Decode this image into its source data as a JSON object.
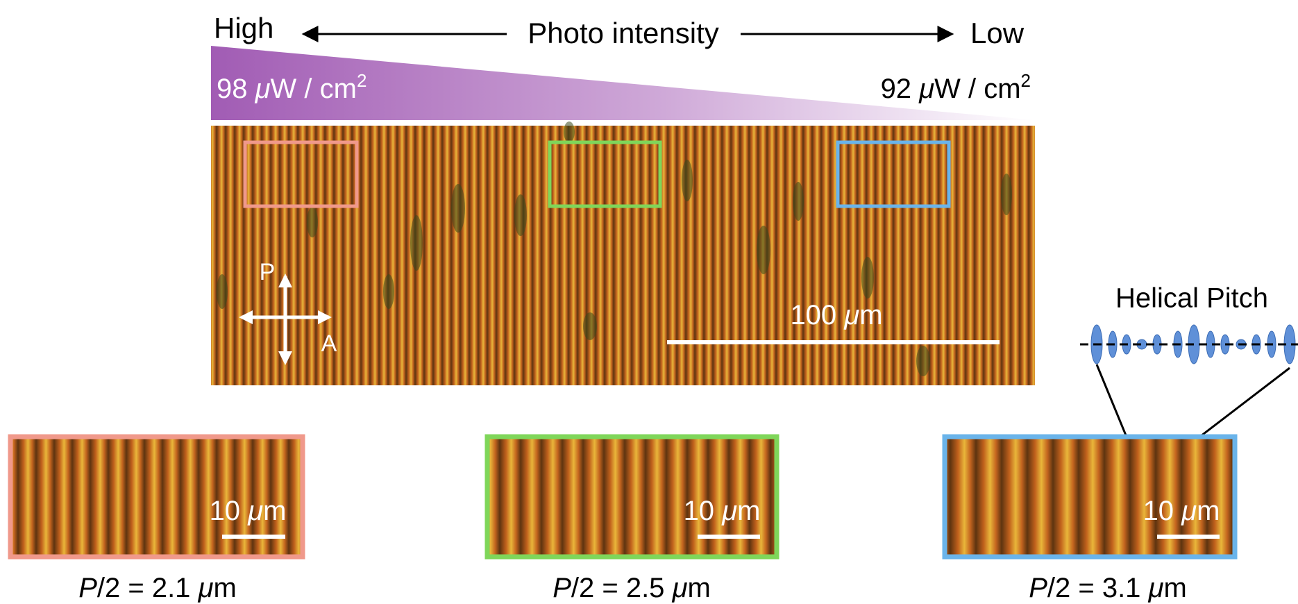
{
  "header": {
    "high": "High",
    "title": "Photo intensity",
    "low": "Low"
  },
  "gradient": {
    "left": {
      "number": "98",
      "mu": "μ",
      "unit": "W / cm",
      "exp": "2"
    },
    "right": {
      "number": "92",
      "mu": "μ",
      "unit": "W / cm",
      "exp": "2"
    }
  },
  "micrograph": {
    "polarizer": "P",
    "analyzer": "A",
    "scale_bar": {
      "number": "100",
      "mu": "μ",
      "unit": "m"
    }
  },
  "helix": {
    "label": "Helical Pitch"
  },
  "insets": [
    {
      "scale_bar": {
        "number": "10",
        "mu": "μ",
        "unit": "m"
      },
      "caption": {
        "symbol": "P",
        "rest": "/2 = 2.1",
        "mu": "μ",
        "unit": "m"
      }
    },
    {
      "scale_bar": {
        "number": "10",
        "mu": "μ",
        "unit": "m"
      },
      "caption": {
        "symbol": "P",
        "rest": "/2 = 2.5",
        "mu": "μ",
        "unit": "m"
      }
    },
    {
      "scale_bar": {
        "number": "10",
        "mu": "μ",
        "unit": "m"
      },
      "caption": {
        "symbol": "P",
        "rest": "/2 = 3.1",
        "mu": "μ",
        "unit": "m"
      }
    }
  ]
}
